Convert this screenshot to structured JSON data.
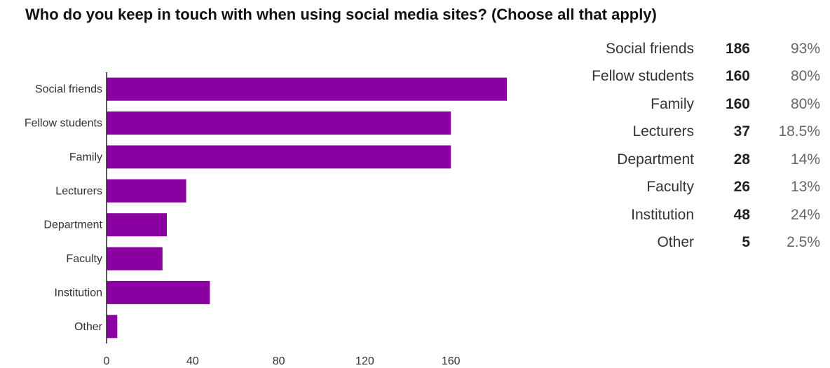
{
  "title": "Who do you keep in touch with when using social media sites? (Choose all that apply)",
  "colors": {
    "bar": "#8b00a0",
    "axis": "#222222",
    "text": "#333333"
  },
  "chart_data": {
    "type": "bar",
    "orientation": "horizontal",
    "categories": [
      "Social friends",
      "Fellow students",
      "Family",
      "Lecturers",
      "Department",
      "Faculty",
      "Institution",
      "Other"
    ],
    "values": [
      186,
      160,
      160,
      37,
      28,
      26,
      48,
      5
    ],
    "xlim": [
      0,
      190
    ],
    "xticks": [
      0,
      40,
      80,
      120,
      160
    ],
    "grid": false,
    "legend": "none"
  },
  "table": {
    "rows": [
      {
        "label": "Social friends",
        "count": "186",
        "percent": "93%"
      },
      {
        "label": "Fellow students",
        "count": "160",
        "percent": "80%"
      },
      {
        "label": "Family",
        "count": "160",
        "percent": "80%"
      },
      {
        "label": "Lecturers",
        "count": "37",
        "percent": "18.5%"
      },
      {
        "label": "Department",
        "count": "28",
        "percent": "14%"
      },
      {
        "label": "Faculty",
        "count": "26",
        "percent": "13%"
      },
      {
        "label": "Institution",
        "count": "48",
        "percent": "24%"
      },
      {
        "label": "Other",
        "count": "5",
        "percent": "2.5%"
      }
    ]
  }
}
